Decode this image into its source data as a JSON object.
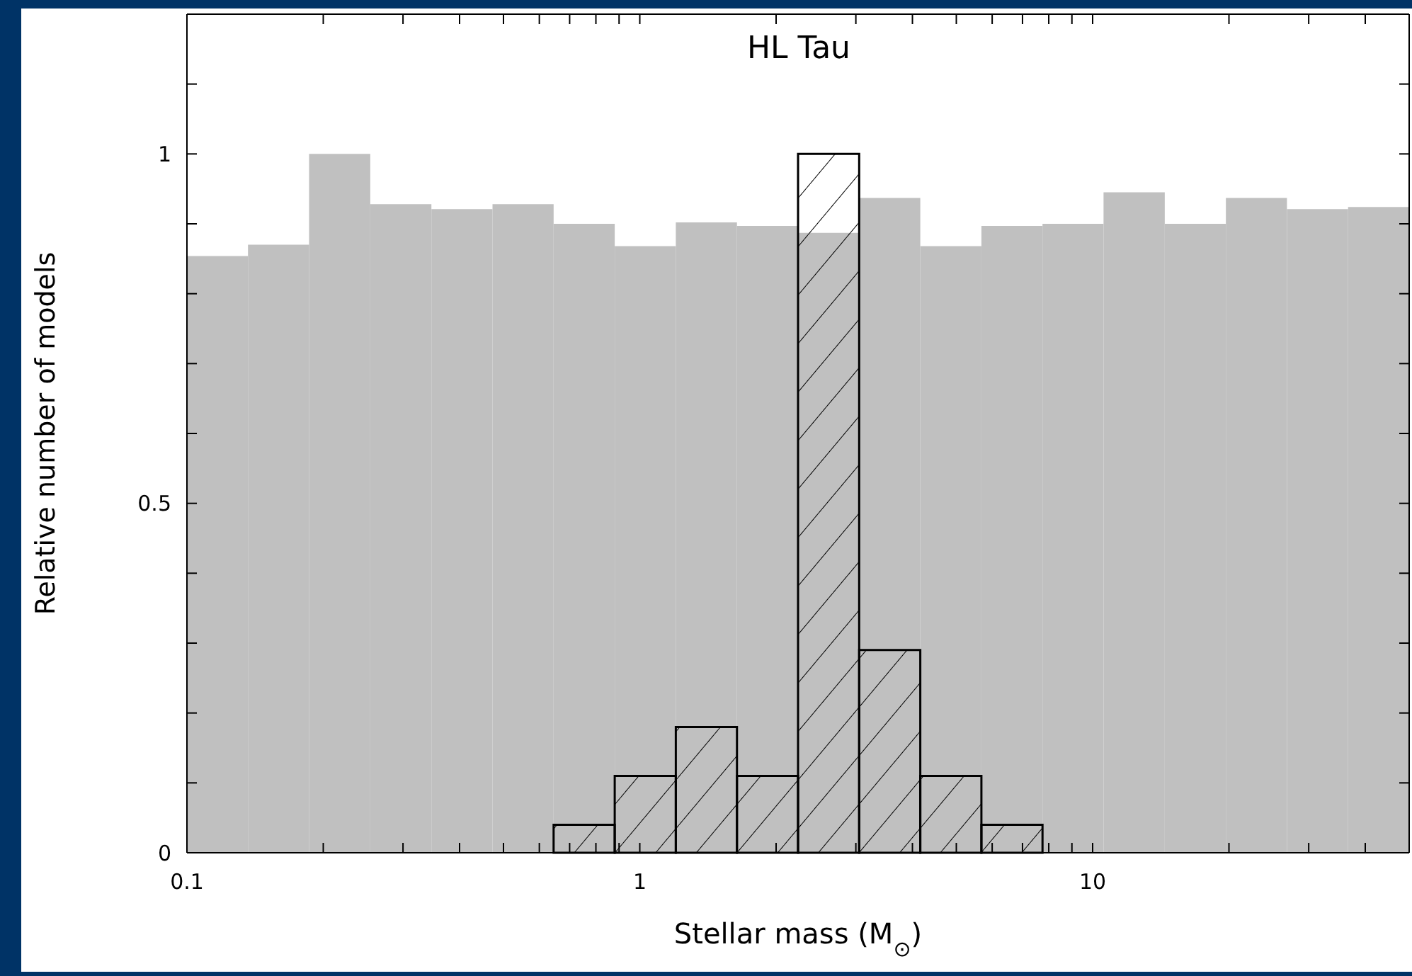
{
  "chart_data": {
    "type": "histogram",
    "title": "HL Tau",
    "xlabel": "Stellar mass (M$_{⊙}$)",
    "ylabel": "Relative number of models",
    "bins": [
      0.1,
      0.1364,
      0.1861,
      0.254,
      0.3466,
      0.4729,
      0.6452,
      0.8803,
      1.201,
      1.639,
      2.236,
      3.051,
      4.163,
      5.68,
      7.75,
      10.57,
      14.43,
      19.69,
      26.86,
      36.65,
      50
    ],
    "series": [
      {
        "color": "#c0c0c0",
        "values": [
          0.854,
          0.87,
          1,
          0.928,
          0.921,
          0.928,
          0.9,
          0.868,
          0.902,
          0.897,
          0.887,
          0.937,
          0.868,
          0.897,
          0.9,
          0.945,
          0.9,
          0.937,
          0.921,
          0.924
        ]
      },
      {
        "color": "#000000",
        "values": [
          null,
          null,
          null,
          null,
          null,
          null,
          0.04,
          0.11,
          0.18,
          0.11,
          1,
          0.29,
          0.11,
          0.04,
          null,
          null,
          null,
          null,
          null,
          null
        ]
      }
    ],
    "log": "x",
    "xlim": [
      0.1,
      50
    ],
    "xticks": [
      0.1,
      {
        "value": 0.2,
        "label": null
      },
      {
        "value": 0.3,
        "label": null
      },
      {
        "value": 0.4,
        "label": null
      },
      {
        "value": 0.5,
        "label": null
      },
      {
        "value": 0.6,
        "label": null
      },
      {
        "value": 0.7,
        "label": null
      },
      {
        "value": 0.8,
        "label": null
      },
      {
        "value": 0.9,
        "label": null
      },
      1,
      {
        "value": 2,
        "label": null
      },
      {
        "value": 3,
        "label": null
      },
      {
        "value": 4,
        "label": null
      },
      {
        "value": 5,
        "label": null
      },
      {
        "value": 6,
        "label": null
      },
      {
        "value": 7,
        "label": null
      },
      {
        "value": 8,
        "label": null
      },
      {
        "value": 9,
        "label": null
      },
      10,
      {
        "value": 20,
        "label": null
      },
      {
        "value": 30,
        "label": null
      },
      {
        "value": 40,
        "label": null
      }
    ],
    "ylim": [
      0,
      1.2
    ],
    "yticks": [
      0,
      {
        "value": 0.1,
        "label": null
      },
      {
        "value": 0.2,
        "label": null
      },
      {
        "value": 0.3,
        "label": null
      },
      {
        "value": 0.4,
        "label": null
      },
      0.5,
      {
        "value": 0.6,
        "label": null
      },
      {
        "value": 0.7,
        "label": null
      },
      {
        "value": 0.8,
        "label": null
      },
      {
        "value": 0.9,
        "label": null
      },
      1,
      {
        "value": 1.1,
        "label": null
      }
    ],
    "grid": false
  }
}
